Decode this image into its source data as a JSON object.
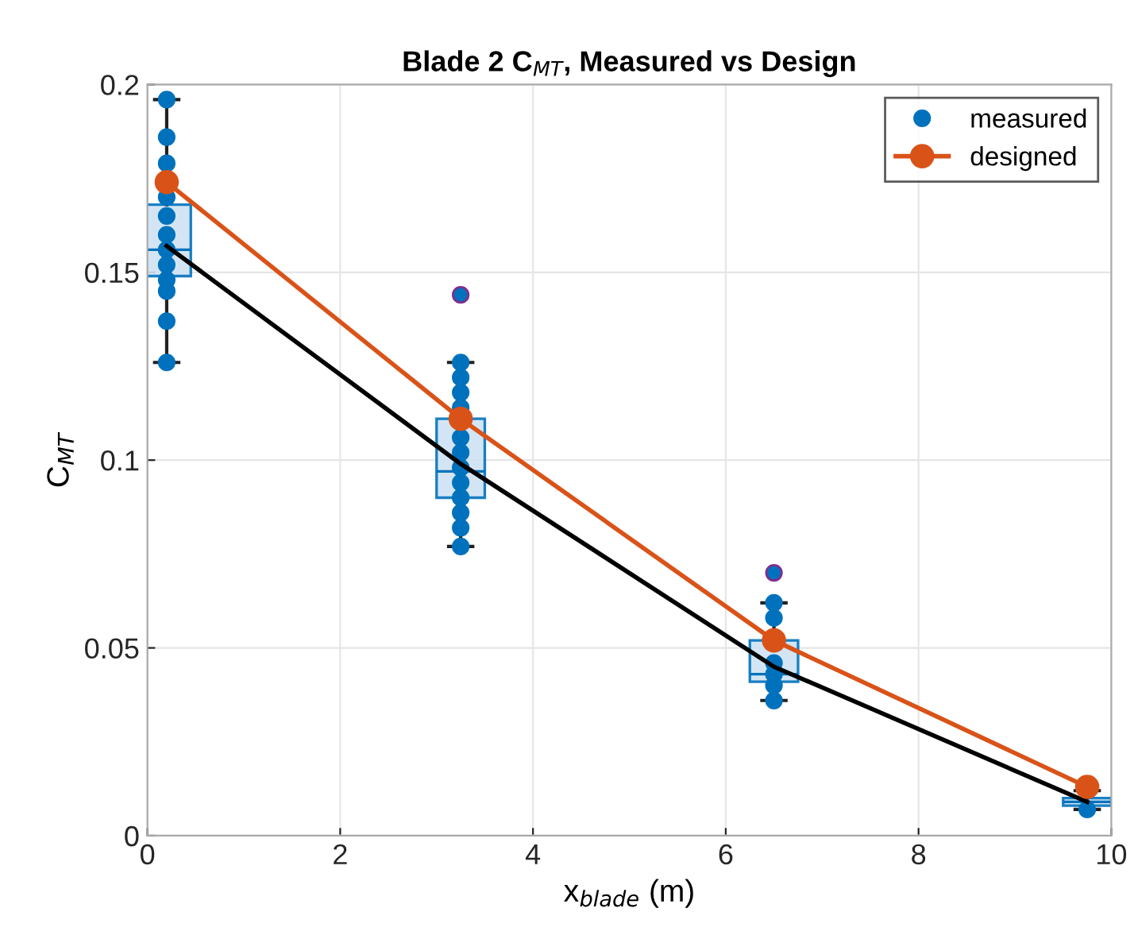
{
  "chart_data": {
    "type": "scatter",
    "title": "Blade 2 C$_{MT}$, Measured vs Design",
    "xlabel": "x$_{blade}$ (m)",
    "ylabel": "C$_{MT}$",
    "xlim": [
      0,
      10
    ],
    "xticks": [
      0,
      2,
      4,
      6,
      8,
      10
    ],
    "ylim": [
      0,
      0.2
    ],
    "yticks": [
      0,
      0.05,
      0.1,
      0.15,
      0.2
    ],
    "grid": true,
    "legend": "top right",
    "series": [
      {
        "type": "box",
        "color": "#0072bd",
        "x": [
          0.2,
          3.25,
          6.5,
          9.75
        ],
        "boxes": [
          {
            "low": 0.126,
            "q1": 0.149,
            "median": 0.156,
            "q3": 0.168,
            "high": 0.196
          },
          {
            "low": 0.077,
            "q1": 0.09,
            "median": 0.097,
            "q3": 0.111,
            "high": 0.126,
            "outliers": [
              0.144
            ]
          },
          {
            "low": 0.036,
            "q1": 0.041,
            "median": 0.043,
            "q3": 0.052,
            "high": 0.062,
            "outliers": [
              0.07
            ]
          },
          {
            "low": 0.007,
            "q1": 0.008,
            "median": 0.009,
            "q3": 0.01,
            "high": 0.012
          }
        ]
      },
      {
        "name": "measured",
        "color": "#0072bd",
        "marker": "circle",
        "x": [
          0.2,
          0.2,
          0.2,
          0.2,
          0.2,
          0.2,
          0.2,
          0.2,
          0.2,
          0.2,
          0.2,
          0.2,
          3.25,
          3.25,
          3.25,
          3.25,
          3.25,
          3.25,
          3.25,
          3.25,
          3.25,
          3.25,
          3.25,
          3.25,
          6.5,
          6.5,
          6.5,
          6.5,
          6.5,
          6.5,
          9.75
        ],
        "values": [
          0.196,
          0.186,
          0.179,
          0.17,
          0.165,
          0.16,
          0.156,
          0.152,
          0.148,
          0.145,
          0.137,
          0.126,
          0.126,
          0.122,
          0.118,
          0.114,
          0.106,
          0.102,
          0.098,
          0.094,
          0.09,
          0.086,
          0.082,
          0.077,
          0.062,
          0.058,
          0.046,
          0.043,
          0.04,
          0.036,
          0.007
        ]
      },
      {
        "type": "line",
        "color": "#000000",
        "marker": "none",
        "x": [
          0.2,
          3.25,
          6.5,
          9.75
        ],
        "values": [
          0.157,
          0.099,
          0.045,
          0.009
        ]
      },
      {
        "type": "line",
        "name": "designed",
        "color": "#d95319",
        "marker": "circle",
        "x": [
          0.2,
          3.25,
          6.5,
          9.75
        ],
        "values": [
          0.174,
          0.111,
          0.052,
          0.013
        ]
      }
    ]
  }
}
